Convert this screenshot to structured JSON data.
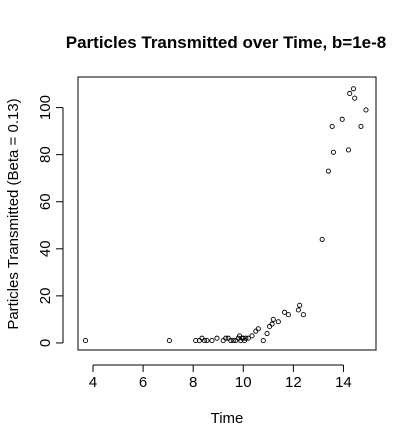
{
  "chart_data": {
    "type": "scatter",
    "title": "Particles Transmitted over Time, b=1e-8",
    "xlabel": "Time",
    "ylabel": "Particles Transmitted (Beta = 0.13)",
    "xlim": [
      3.4,
      15.3
    ],
    "ylim": [
      -3,
      113
    ],
    "xticks": [
      4,
      6,
      8,
      10,
      12,
      14
    ],
    "yticks": [
      0,
      20,
      40,
      60,
      80,
      100
    ],
    "grid": false,
    "legend": "none",
    "marker": "open-circle",
    "color": "#000000",
    "series": [
      {
        "x": [
          3.7,
          7.05,
          8.1,
          8.25,
          8.35,
          8.45,
          8.55,
          8.75,
          8.95,
          9.2,
          9.3,
          9.4,
          9.5,
          9.6,
          9.7,
          9.8,
          9.85,
          9.9,
          9.95,
          10.0,
          10.05,
          10.1,
          10.2,
          10.35,
          10.5,
          10.6,
          10.8,
          10.95,
          11.05,
          11.15,
          11.2,
          11.4,
          11.65,
          11.8,
          12.2,
          12.25,
          12.4,
          13.15,
          13.4,
          13.55,
          13.6,
          13.95,
          14.2,
          14.25,
          14.4,
          14.45,
          14.7,
          14.9
        ],
        "y": [
          1,
          1,
          1,
          1,
          2,
          1,
          1,
          1,
          2,
          1,
          2,
          2,
          1,
          1,
          1,
          2,
          3,
          1,
          2,
          2,
          1,
          2,
          2,
          3,
          5,
          6,
          1,
          4,
          7,
          8,
          10,
          9,
          13,
          12,
          14,
          16,
          12,
          44,
          73,
          92,
          81,
          95,
          82,
          106,
          108,
          104,
          92,
          99
        ]
      }
    ]
  }
}
